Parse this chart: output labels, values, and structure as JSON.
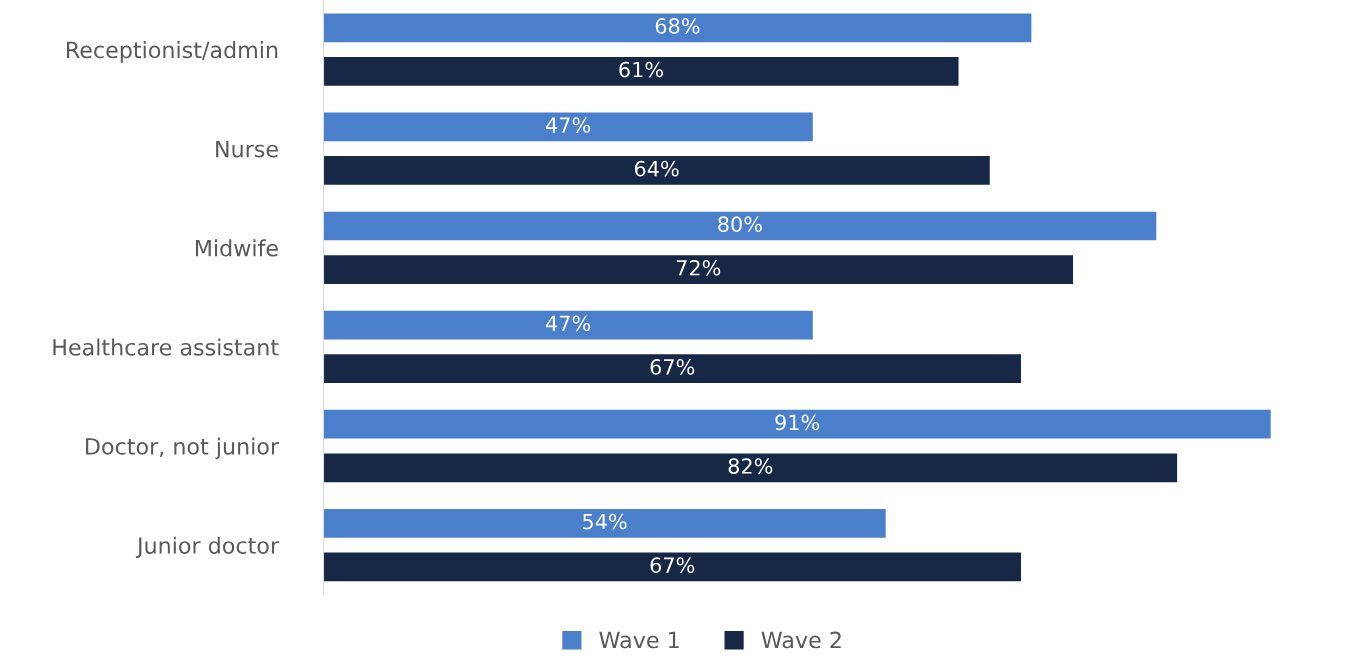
{
  "chart_data": {
    "type": "bar",
    "orientation": "horizontal",
    "categories": [
      "Receptionist/admin",
      "Nurse",
      "Midwife",
      "Healthcare assistant",
      "Doctor, not junior",
      "Junior doctor"
    ],
    "series": [
      {
        "name": "Wave 1",
        "color": "#4a7fcc",
        "values": [
          68,
          47,
          80,
          47,
          91,
          54
        ],
        "value_labels": [
          "68%",
          "47%",
          "80%",
          "47%",
          "91%",
          "54%"
        ]
      },
      {
        "name": "Wave 2",
        "color": "#172847",
        "values": [
          61,
          64,
          72,
          67,
          82,
          67
        ],
        "value_labels": [
          "61%",
          "64%",
          "72%",
          "67%",
          "82%",
          "67%"
        ]
      }
    ],
    "tick_labels": "y",
    "legend": "bottom",
    "grid": false
  }
}
